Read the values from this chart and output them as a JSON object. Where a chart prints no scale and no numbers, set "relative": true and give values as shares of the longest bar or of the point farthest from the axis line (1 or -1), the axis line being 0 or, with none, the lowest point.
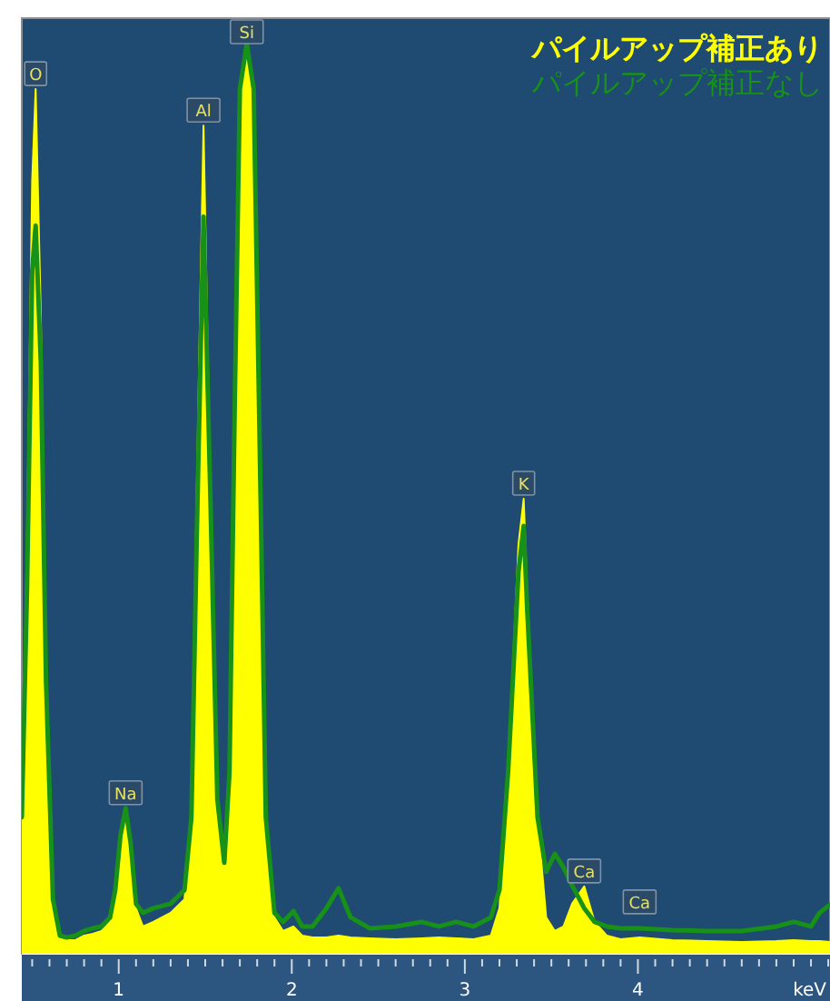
{
  "chart_data": {
    "type": "area",
    "relative": true,
    "xlabel": "keV",
    "legend": "top right",
    "x": [
      0.44,
      0.47,
      0.5,
      0.52,
      0.55,
      0.58,
      0.62,
      0.66,
      0.7,
      0.75,
      0.8,
      0.85,
      0.9,
      0.95,
      0.98,
      1.01,
      1.04,
      1.07,
      1.1,
      1.14,
      1.2,
      1.3,
      1.38,
      1.42,
      1.45,
      1.49,
      1.53,
      1.57,
      1.61,
      1.64,
      1.67,
      1.7,
      1.74,
      1.78,
      1.82,
      1.85,
      1.9,
      1.95,
      2.01,
      2.06,
      2.12,
      2.2,
      2.27,
      2.34,
      2.45,
      2.6,
      2.75,
      2.85,
      2.95,
      3.05,
      3.15,
      3.2,
      3.25,
      3.31,
      3.34,
      3.36,
      3.42,
      3.47,
      3.52,
      3.57,
      3.62,
      3.69,
      3.75,
      3.82,
      3.9,
      4.01,
      4.2,
      4.4,
      4.6,
      4.8,
      4.9,
      5.0,
      5.05,
      5.11
    ],
    "xlim": [
      0.44,
      5.11
    ],
    "xticks": [
      {
        "value": 0.5,
        "label": null
      },
      {
        "value": 0.6,
        "label": null
      },
      {
        "value": 0.7,
        "label": null
      },
      {
        "value": 0.8,
        "label": null
      },
      {
        "value": 0.9,
        "label": null
      },
      1,
      {
        "value": 1.1,
        "label": null
      },
      {
        "value": 1.2,
        "label": null
      },
      {
        "value": 1.3,
        "label": null
      },
      {
        "value": 1.4,
        "label": null
      },
      {
        "value": 1.5,
        "label": null
      },
      {
        "value": 1.6,
        "label": null
      },
      {
        "value": 1.7,
        "label": null
      },
      {
        "value": 1.8,
        "label": null
      },
      {
        "value": 1.9,
        "label": null
      },
      2,
      {
        "value": 2.1,
        "label": null
      },
      {
        "value": 2.2,
        "label": null
      },
      {
        "value": 2.3,
        "label": null
      },
      {
        "value": 2.4,
        "label": null
      },
      {
        "value": 2.5,
        "label": null
      },
      {
        "value": 2.6,
        "label": null
      },
      {
        "value": 2.7,
        "label": null
      },
      {
        "value": 2.8,
        "label": null
      },
      {
        "value": 2.9,
        "label": null
      },
      3,
      {
        "value": 3.1,
        "label": null
      },
      {
        "value": 3.2,
        "label": null
      },
      {
        "value": 3.3,
        "label": null
      },
      {
        "value": 3.4,
        "label": null
      },
      {
        "value": 3.5,
        "label": null
      },
      {
        "value": 3.6,
        "label": null
      },
      {
        "value": 3.7,
        "label": null
      },
      {
        "value": 3.8,
        "label": null
      },
      {
        "value": 3.9,
        "label": null
      },
      4,
      {
        "value": 4.1,
        "label": null
      },
      {
        "value": 4.2,
        "label": null
      },
      {
        "value": 4.3,
        "label": null
      },
      {
        "value": 4.4,
        "label": null
      },
      {
        "value": 4.5,
        "label": null
      },
      {
        "value": 4.6,
        "label": null
      },
      {
        "value": 4.7,
        "label": null
      },
      {
        "value": 4.8,
        "label": null
      },
      {
        "value": 4.9,
        "label": null
      },
      {
        "value": 5.0,
        "label": null
      },
      {
        "value": 5.1,
        "label": null
      }
    ],
    "series": [
      {
        "name": "パイルアップ補正あり",
        "color": "#ffff00",
        "values": [
          0.15,
          0.45,
          0.85,
          0.95,
          0.7,
          0.3,
          0.06,
          0.02,
          0.015,
          0.015,
          0.02,
          0.022,
          0.025,
          0.035,
          0.07,
          0.13,
          0.16,
          0.12,
          0.05,
          0.03,
          0.035,
          0.045,
          0.06,
          0.15,
          0.5,
          0.91,
          0.5,
          0.15,
          0.09,
          0.2,
          0.6,
          0.95,
          1.0,
          0.95,
          0.5,
          0.15,
          0.04,
          0.025,
          0.03,
          0.02,
          0.018,
          0.018,
          0.02,
          0.018,
          0.017,
          0.016,
          0.017,
          0.018,
          0.017,
          0.016,
          0.02,
          0.05,
          0.2,
          0.45,
          0.5,
          0.4,
          0.15,
          0.04,
          0.025,
          0.03,
          0.055,
          0.074,
          0.035,
          0.02,
          0.016,
          0.018,
          0.015,
          0.014,
          0.013,
          0.014,
          0.015,
          0.014,
          0.014,
          0.013
        ]
      },
      {
        "name": "パイルアップ補正なし",
        "color": "#179117",
        "type": "line",
        "values": [
          0.15,
          0.4,
          0.75,
          0.8,
          0.65,
          0.3,
          0.06,
          0.02,
          0.018,
          0.02,
          0.025,
          0.028,
          0.03,
          0.04,
          0.07,
          0.13,
          0.16,
          0.12,
          0.055,
          0.045,
          0.05,
          0.055,
          0.07,
          0.15,
          0.45,
          0.81,
          0.5,
          0.17,
          0.1,
          0.2,
          0.6,
          0.95,
          1.0,
          0.95,
          0.5,
          0.15,
          0.045,
          0.035,
          0.047,
          0.03,
          0.03,
          0.05,
          0.072,
          0.04,
          0.028,
          0.03,
          0.035,
          0.03,
          0.035,
          0.03,
          0.04,
          0.07,
          0.2,
          0.42,
          0.47,
          0.38,
          0.15,
          0.09,
          0.11,
          0.095,
          0.075,
          0.05,
          0.035,
          0.03,
          0.028,
          0.028,
          0.026,
          0.025,
          0.025,
          0.03,
          0.035,
          0.03,
          0.045,
          0.054
        ]
      }
    ],
    "annotations": [
      {
        "text": "O",
        "x": 0.52,
        "y": 0.95
      },
      {
        "text": "Na",
        "x": 1.04,
        "y": 0.16
      },
      {
        "text": "Al",
        "x": 1.49,
        "y": 0.91
      },
      {
        "text": "Si",
        "x": 1.74,
        "y": 1.0
      },
      {
        "text": "K",
        "x": 3.34,
        "y": 0.5
      },
      {
        "text": "Ca",
        "x": 3.69,
        "y": 0.074
      },
      {
        "text": "Ca",
        "x": 4.01,
        "y": 0.04
      }
    ]
  }
}
